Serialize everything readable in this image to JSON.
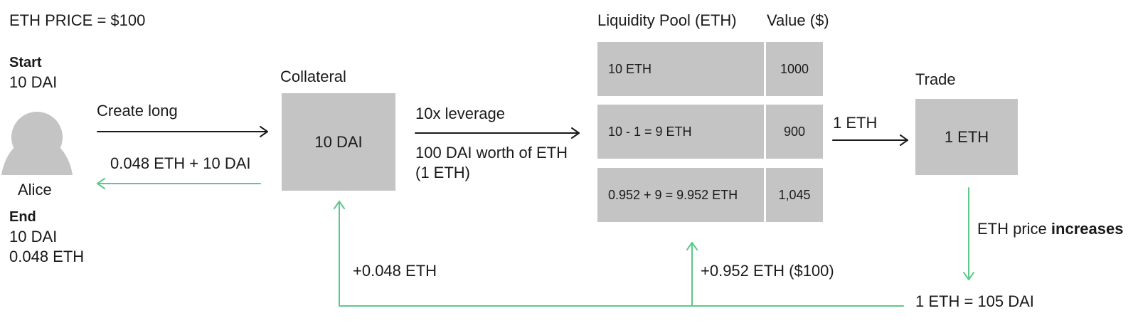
{
  "header": {
    "price": "ETH PRICE = $100"
  },
  "alice": {
    "start_title": "Start",
    "start_value": "10 DAI",
    "name": "Alice",
    "end_title": "End",
    "end_values": [
      "10 DAI",
      "0.048 ETH"
    ]
  },
  "flows": {
    "create_long": "Create long",
    "return": "0.048 ETH + 10 DAI",
    "leverage": "10x leverage",
    "leverage_note": [
      "100 DAI worth of ETH",
      "(1 ETH)"
    ],
    "trade_amount": "1 ETH",
    "price_change_prefix": "ETH price ",
    "price_change_emphasis": "increases",
    "new_price": "1 ETH = 105 DAI",
    "profit_to_pool": "+0.952 ETH ($100)",
    "profit_to_collateral": "+0.048 ETH"
  },
  "collateral": {
    "label": "Collateral",
    "value": "10 DAI"
  },
  "pool": {
    "header_eth": "Liquidity Pool (ETH)",
    "header_value": "Value ($)",
    "rows": [
      {
        "eth": "10 ETH",
        "value": "1000"
      },
      {
        "eth": "10 - 1 = 9 ETH",
        "value": "900"
      },
      {
        "eth": "0.952 + 9 = 9.952 ETH",
        "value": "1,045"
      }
    ]
  },
  "trade": {
    "label": "Trade",
    "value": "1 ETH"
  },
  "colors": {
    "box": "#c4c4c4",
    "green_arrow": "#5cc98a",
    "black_arrow": "#1a1a1a"
  }
}
